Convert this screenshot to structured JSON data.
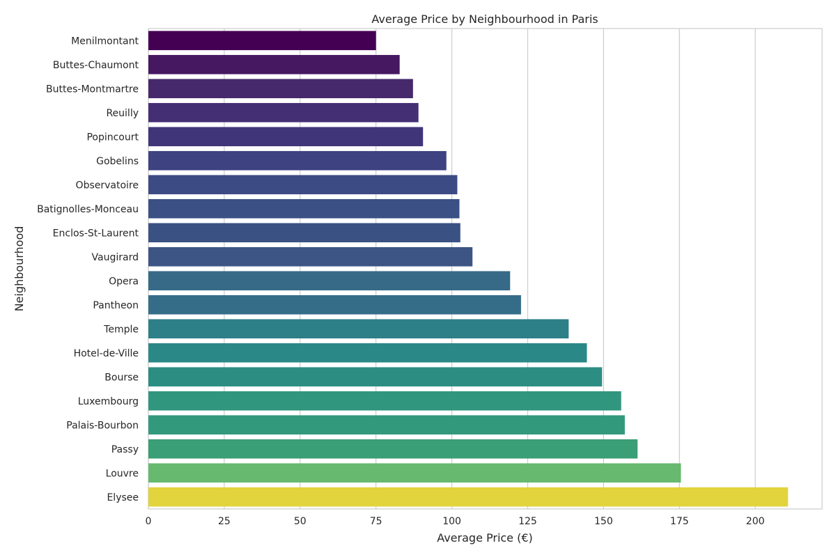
{
  "chart_data": {
    "type": "bar",
    "orientation": "horizontal",
    "title": "Average Price by Neighbourhood in Paris",
    "xlabel": "Average Price (€)",
    "ylabel": "Neighbourhood",
    "xlim": [
      0,
      222
    ],
    "xticks": [
      0,
      25,
      50,
      75,
      100,
      125,
      150,
      175,
      200
    ],
    "grid": "vertical",
    "palette": "viridis",
    "categories": [
      "Menilmontant",
      "Buttes-Chaumont",
      "Buttes-Montmartre",
      "Reuilly",
      "Popincourt",
      "Gobelins",
      "Observatoire",
      "Batignolles-Monceau",
      "Enclos-St-Laurent",
      "Vaugirard",
      "Opera",
      "Pantheon",
      "Temple",
      "Hotel-de-Ville",
      "Bourse",
      "Luxembourg",
      "Palais-Bourbon",
      "Passy",
      "Louvre",
      "Elysee"
    ],
    "values": [
      75,
      82.8,
      87.2,
      89,
      90.5,
      98.2,
      101.8,
      102.5,
      102.8,
      106.8,
      119.2,
      122.8,
      138.5,
      144.5,
      149.5,
      155.8,
      157,
      161.2,
      175.5,
      210.8
    ],
    "colors": [
      "#440154",
      "#461862",
      "#46286c",
      "#442f74",
      "#41357a",
      "#3e4281",
      "#3d4b84",
      "#3b5084",
      "#3a5283",
      "#3c5584",
      "#366a87",
      "#356d88",
      "#2d7f88",
      "#2a8987",
      "#2c8e82",
      "#31967e",
      "#33997c",
      "#3a9e76",
      "#67b970",
      "#e2d43c"
    ]
  }
}
